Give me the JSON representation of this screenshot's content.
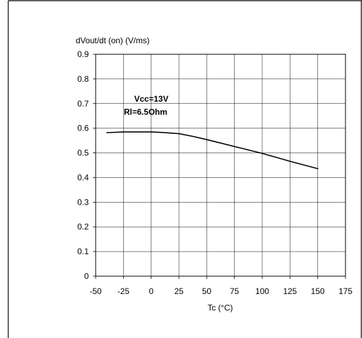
{
  "chart_data": {
    "type": "line",
    "ylabel": "dVout/dt (on) (V/ms)",
    "xlabel": "Tc (°C)",
    "xlim": [
      -50,
      175
    ],
    "ylim": [
      0,
      0.9
    ],
    "xticks": [
      "-50",
      "-25",
      "0",
      "25",
      "50",
      "75",
      "100",
      "125",
      "150",
      "175"
    ],
    "yticks": [
      "0",
      "0.1",
      "0.2",
      "0.3",
      "0.4",
      "0.5",
      "0.6",
      "0.7",
      "0.8",
      "0.9"
    ],
    "grid": true,
    "annotation": [
      "Vcc=13V",
      "Rl=6.5Ohm"
    ],
    "series": [
      {
        "x": [
          -40,
          -25,
          -10,
          0,
          10,
          25,
          37.5,
          50,
          62.5,
          75,
          87.5,
          100,
          112.5,
          125,
          137.5,
          150
        ],
        "y": [
          0.582,
          0.585,
          0.585,
          0.585,
          0.583,
          0.578,
          0.567,
          0.554,
          0.54,
          0.526,
          0.512,
          0.498,
          0.482,
          0.466,
          0.451,
          0.436
        ]
      }
    ],
    "line_color": "#000000"
  }
}
